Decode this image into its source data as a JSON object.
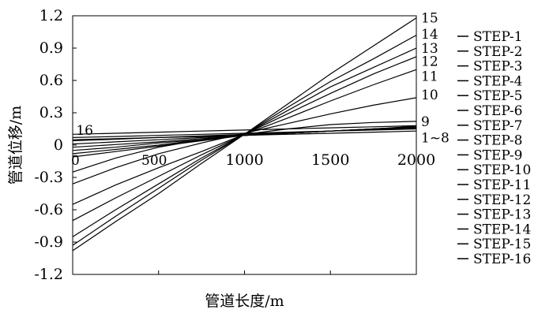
{
  "chart_data": {
    "type": "line",
    "title": "",
    "xlabel": "管道长度/m",
    "ylabel": "管道位移/m",
    "xlim": [
      0,
      2000
    ],
    "ylim": [
      -1.2,
      1.2
    ],
    "xticks": [
      0,
      500,
      1000,
      1500,
      2000
    ],
    "yticks": [
      1.2,
      0.9,
      0.6,
      0.3,
      0,
      -0.3,
      -0.6,
      -0.9,
      -1.2
    ],
    "xtick_labels": [
      "0",
      "500",
      "1000",
      "1500",
      "2000"
    ],
    "ytick_labels": [
      "1.2",
      "0.9",
      "0.6",
      "0.3",
      "0",
      "-0.3",
      "-0.6",
      "-0.9",
      "-1.2"
    ],
    "x": [
      0,
      250,
      500,
      750,
      1000,
      1250,
      1500,
      1750,
      2000
    ],
    "series": [
      {
        "name": "STEP-1",
        "values": [
          0.1,
          0.11,
          0.12,
          0.13,
          0.14,
          0.15,
          0.16,
          0.17,
          0.18
        ]
      },
      {
        "name": "STEP-2",
        "values": [
          0.07,
          0.08,
          0.09,
          0.1,
          0.11,
          0.12,
          0.13,
          0.14,
          0.15
        ]
      },
      {
        "name": "STEP-3",
        "values": [
          0.04,
          0.055,
          0.07,
          0.085,
          0.1,
          0.115,
          0.13,
          0.145,
          0.16
        ]
      },
      {
        "name": "STEP-4",
        "values": [
          0.01,
          0.03,
          0.05,
          0.07,
          0.09,
          0.11,
          0.13,
          0.15,
          0.17
        ]
      },
      {
        "name": "STEP-5",
        "values": [
          -0.02,
          0.005,
          0.03,
          0.06,
          0.09,
          0.11,
          0.13,
          0.145,
          0.16
        ]
      },
      {
        "name": "STEP-6",
        "values": [
          -0.05,
          -0.02,
          0.02,
          0.05,
          0.09,
          0.11,
          0.13,
          0.15,
          0.165
        ]
      },
      {
        "name": "STEP-7",
        "values": [
          -0.08,
          -0.04,
          0.0,
          0.05,
          0.09,
          0.11,
          0.13,
          0.15,
          0.17
        ]
      },
      {
        "name": "STEP-8",
        "values": [
          -0.11,
          -0.06,
          -0.01,
          0.04,
          0.09,
          0.11,
          0.13,
          0.15,
          0.175
        ]
      },
      {
        "name": "STEP-9",
        "values": [
          -0.25,
          -0.12,
          -0.02,
          0.05,
          0.1,
          0.15,
          0.19,
          0.21,
          0.22
        ]
      },
      {
        "name": "STEP-10",
        "values": [
          -0.36,
          -0.21,
          -0.08,
          0.02,
          0.11,
          0.2,
          0.29,
          0.37,
          0.44
        ]
      },
      {
        "name": "STEP-11",
        "values": [
          -0.55,
          -0.37,
          -0.21,
          -0.06,
          0.1,
          0.25,
          0.41,
          0.56,
          0.7
        ]
      },
      {
        "name": "STEP-12",
        "values": [
          -0.7,
          -0.49,
          -0.29,
          -0.09,
          0.1,
          0.29,
          0.48,
          0.66,
          0.82
        ]
      },
      {
        "name": "STEP-13",
        "values": [
          -0.85,
          -0.6,
          -0.36,
          -0.12,
          0.1,
          0.32,
          0.54,
          0.72,
          0.9
        ]
      },
      {
        "name": "STEP-14",
        "values": [
          -0.93,
          -0.66,
          -0.4,
          -0.14,
          0.1,
          0.35,
          0.59,
          0.8,
          1.02
        ]
      },
      {
        "name": "STEP-15",
        "values": [
          -0.98,
          -0.71,
          -0.45,
          -0.17,
          0.1,
          0.38,
          0.66,
          0.92,
          1.18
        ]
      },
      {
        "name": "STEP-16",
        "values": [
          0.05,
          0.06,
          0.07,
          0.08,
          0.09,
          0.1,
          0.11,
          0.12,
          0.13
        ]
      }
    ],
    "curve_labels": [
      {
        "text": "15",
        "x": 2000,
        "y": 1.18
      },
      {
        "text": "14",
        "x": 2000,
        "y": 1.03
      },
      {
        "text": "13",
        "x": 2000,
        "y": 0.9
      },
      {
        "text": "12",
        "x": 2000,
        "y": 0.78
      },
      {
        "text": "11",
        "x": 2000,
        "y": 0.64
      },
      {
        "text": "10",
        "x": 2000,
        "y": 0.47
      },
      {
        "text": "9",
        "x": 2000,
        "y": 0.22
      },
      {
        "text": "1~8",
        "x": 2000,
        "y": 0.07
      },
      {
        "text": "16",
        "x": 20,
        "y": 0.14
      },
      {
        "text": "0",
        "x": 0,
        "y": -0.14
      },
      {
        "text": "500",
        "x": 400,
        "y": -0.14
      }
    ],
    "legend": {
      "position": "right",
      "entries": [
        "STEP-1",
        "STEP-2",
        "STEP-3",
        "STEP-4",
        "STEP-5",
        "STEP-6",
        "STEP-7",
        "STEP-8",
        "STEP-9",
        "STEP-10",
        "STEP-11",
        "STEP-12",
        "STEP-13",
        "STEP-14",
        "STEP-15",
        "STEP-16"
      ]
    },
    "grid": false
  }
}
